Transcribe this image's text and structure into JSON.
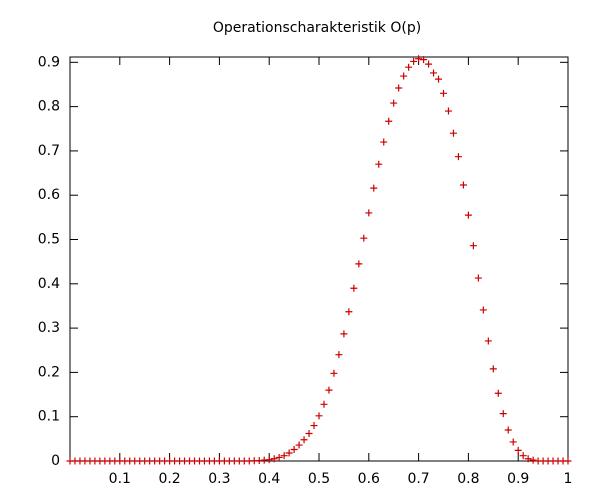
{
  "chart_data": {
    "type": "scatter",
    "title": "Operationscharakteristik O(p)",
    "marker": "+",
    "color": "#cc0000",
    "x": [
      0,
      0.01,
      0.02,
      0.03,
      0.04,
      0.05,
      0.06,
      0.07,
      0.08,
      0.09,
      0.1,
      0.11,
      0.12,
      0.13,
      0.14,
      0.15,
      0.16,
      0.17,
      0.18,
      0.19,
      0.2,
      0.21,
      0.22,
      0.23,
      0.24,
      0.25,
      0.26,
      0.27,
      0.28,
      0.29,
      0.3,
      0.31,
      0.32,
      0.33,
      0.34,
      0.35,
      0.36,
      0.37,
      0.38,
      0.39,
      0.4,
      0.41,
      0.42,
      0.43,
      0.44,
      0.45,
      0.46,
      0.47,
      0.48,
      0.49,
      0.5,
      0.51,
      0.52,
      0.53,
      0.54,
      0.55,
      0.56,
      0.57,
      0.58,
      0.59,
      0.6,
      0.61,
      0.62,
      0.63,
      0.64,
      0.65,
      0.66,
      0.67,
      0.68,
      0.69,
      0.7,
      0.71,
      0.72,
      0.73,
      0.74,
      0.75,
      0.76,
      0.77,
      0.78,
      0.79,
      0.8,
      0.81,
      0.82,
      0.83,
      0.84,
      0.85,
      0.86,
      0.87,
      0.88,
      0.89,
      0.9,
      0.91,
      0.92,
      0.93,
      0.94,
      0.95,
      0.96,
      0.97,
      0.98,
      0.99,
      1
    ],
    "values": [
      0,
      0,
      0,
      0,
      0,
      0,
      0,
      0,
      0,
      0,
      0,
      0,
      0,
      0,
      0,
      0,
      0,
      0,
      0,
      0,
      0,
      0,
      0,
      0,
      0,
      0,
      0,
      0,
      0,
      0,
      0,
      0,
      0,
      0,
      0,
      0,
      0,
      0.0005,
      0.001,
      0.002,
      0.003,
      0.005,
      0.008,
      0.012,
      0.018,
      0.026,
      0.036,
      0.048,
      0.062,
      0.08,
      0.102,
      0.128,
      0.16,
      0.198,
      0.24,
      0.287,
      0.337,
      0.39,
      0.445,
      0.503,
      0.56,
      0.616,
      0.67,
      0.72,
      0.767,
      0.808,
      0.842,
      0.869,
      0.889,
      0.902,
      0.908,
      0.906,
      0.896,
      0.876,
      0.862,
      0.83,
      0.79,
      0.74,
      0.687,
      0.623,
      0.555,
      0.486,
      0.413,
      0.341,
      0.271,
      0.208,
      0.153,
      0.107,
      0.07,
      0.043,
      0.024,
      0.012,
      0.005,
      0.002,
      0,
      0,
      0,
      0,
      0,
      0,
      0
    ],
    "xlim": [
      0,
      1
    ],
    "ylim": [
      0,
      0.912
    ],
    "xticks": [
      0.1,
      0.2,
      0.3,
      0.4,
      0.5,
      0.6,
      0.7,
      0.8,
      0.9,
      1
    ],
    "yticks": [
      0,
      0.1,
      0.2,
      0.3,
      0.4,
      0.5,
      0.6,
      0.7,
      0.8,
      0.9
    ]
  }
}
